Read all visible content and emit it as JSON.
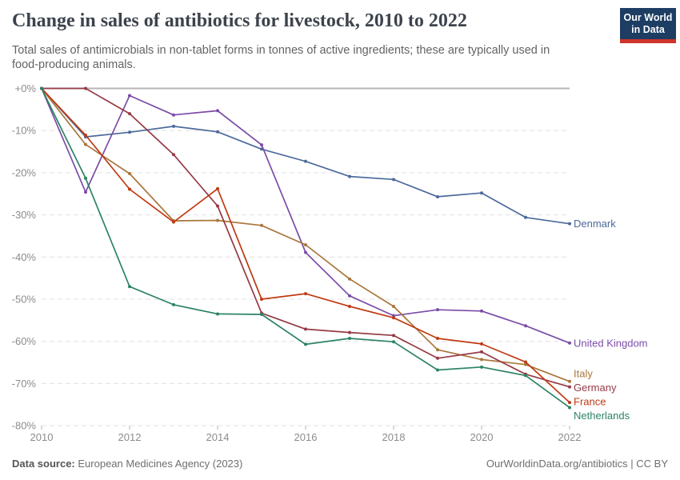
{
  "header": {
    "title": "Change in sales of antibiotics for livestock, 2010 to 2022",
    "subtitle": "Total sales of antimicrobials in non-tablet forms in tonnes of active ingredients; these are typically used in food-producing animals.",
    "logo": {
      "line1": "Our World",
      "line2": "in Data",
      "bg_color": "#1d3d63",
      "accent_color": "#d0342c"
    }
  },
  "footer": {
    "source_label": "Data source:",
    "source_text": "European Medicines Agency (2023)",
    "right_text": "OurWorldinData.org/antibiotics | CC BY"
  },
  "chart_data": {
    "type": "line",
    "x": [
      2010,
      2011,
      2012,
      2013,
      2014,
      2015,
      2016,
      2017,
      2018,
      2019,
      2020,
      2021,
      2022
    ],
    "series": [
      {
        "name": "Denmark",
        "color": "#4c6a9c",
        "values": [
          0,
          -11.5,
          -10.4,
          -9.0,
          -10.3,
          -14.4,
          -17.3,
          -20.9,
          -21.6,
          -25.7,
          -24.8,
          -30.6,
          -32.1
        ]
      },
      {
        "name": "United Kingdom",
        "color": "#7b4ca8",
        "values": [
          0,
          -24.6,
          -1.7,
          -6.3,
          -5.3,
          -13.4,
          -38.9,
          -49.2,
          -53.9,
          -52.5,
          -52.8,
          -56.3,
          -60.4
        ]
      },
      {
        "name": "Italy",
        "color": "#a9763b",
        "values": [
          0,
          -13.3,
          -20.2,
          -31.4,
          -31.3,
          -32.5,
          -37.1,
          -45.2,
          -51.7,
          -62.0,
          -64.3,
          -65.5,
          -69.5
        ]
      },
      {
        "name": "Germany",
        "color": "#963a46",
        "values": [
          0,
          0,
          -6.0,
          -15.7,
          -27.9,
          -53.3,
          -57.1,
          -57.9,
          -58.6,
          -64.0,
          -62.5,
          -67.8,
          -70.8
        ]
      },
      {
        "name": "France",
        "color": "#c03a13",
        "values": [
          0,
          -11.1,
          -23.9,
          -31.7,
          -23.8,
          -50.0,
          -48.7,
          -51.7,
          -54.4,
          -59.3,
          -60.6,
          -64.9,
          -74.5
        ]
      },
      {
        "name": "Netherlands",
        "color": "#2c8465",
        "values": [
          0,
          -21.3,
          -47.0,
          -51.3,
          -53.5,
          -53.6,
          -60.7,
          -59.3,
          -60.1,
          -66.8,
          -66.1,
          -68.1,
          -75.7
        ]
      }
    ],
    "title": "Change in sales of antibiotics for livestock, 2010 to 2022",
    "xlabel": "",
    "ylabel": "",
    "ylim": [
      -80,
      0
    ],
    "xlim": [
      2010,
      2022
    ],
    "yticks": [
      0,
      -10,
      -20,
      -30,
      -40,
      -50,
      -60,
      -70,
      -80
    ],
    "ytick_labels": [
      "+0%",
      "-10%",
      "-20%",
      "-30%",
      "-40%",
      "-50%",
      "-60%",
      "-70%",
      "-80%"
    ],
    "xticks": [
      2010,
      2012,
      2014,
      2016,
      2018,
      2020,
      2022
    ],
    "xtick_labels": [
      "2010",
      "2012",
      "2014",
      "2016",
      "2018",
      "2020",
      "2022"
    ],
    "grid": "horizontal dashed, zero line solid",
    "legend_position": "labels at right end of lines"
  }
}
